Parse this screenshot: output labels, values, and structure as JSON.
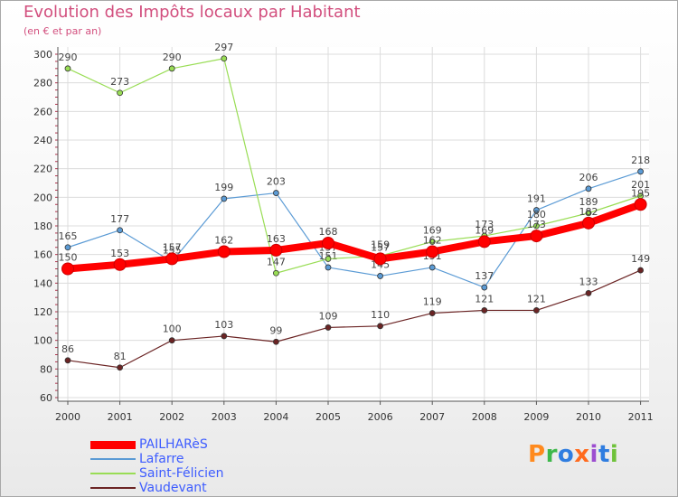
{
  "header": {
    "title": "Evolution des Impôts locaux par Habitant",
    "subtitle": "(en € et par an)"
  },
  "logo": {
    "text": "Proxiti",
    "letter_colors": [
      "#ff8a1e",
      "#3db84a",
      "#2f7de0",
      "#ff6a1e",
      "#9c4dd0",
      "#2f7de0",
      "#6fc23a"
    ]
  },
  "chart_data": {
    "type": "line",
    "title": "Evolution des Impôts locaux par Habitant",
    "subtitle": "(en € et par an)",
    "xlabel": "",
    "ylabel": "",
    "x": [
      "2000",
      "2001",
      "2002",
      "2003",
      "2004",
      "2005",
      "2006",
      "2007",
      "2008",
      "2009",
      "2010",
      "2011"
    ],
    "ylim": [
      60,
      300
    ],
    "yticks": [
      60,
      80,
      100,
      120,
      140,
      160,
      180,
      200,
      220,
      240,
      260,
      280,
      300
    ],
    "grid": true,
    "legend_position": "bottom-left",
    "series": [
      {
        "name": "PAILHARèS",
        "color": "#ff0000",
        "values": [
          150,
          153,
          157,
          162,
          163,
          168,
          157,
          162,
          169,
          173,
          182,
          195
        ]
      },
      {
        "name": "Lafarre",
        "color": "#5b9bd5",
        "values": [
          165,
          177,
          155,
          199,
          203,
          151,
          145,
          151,
          137,
          191,
          206,
          218
        ]
      },
      {
        "name": "Saint-Félicien",
        "color": "#99dd55",
        "values": [
          290,
          273,
          290,
          297,
          147,
          157,
          159,
          169,
          173,
          180,
          189,
          201
        ]
      },
      {
        "name": "Vaudevant",
        "color": "#6b2424",
        "values": [
          86,
          81,
          100,
          103,
          99,
          109,
          110,
          119,
          121,
          121,
          133,
          149
        ]
      }
    ]
  }
}
